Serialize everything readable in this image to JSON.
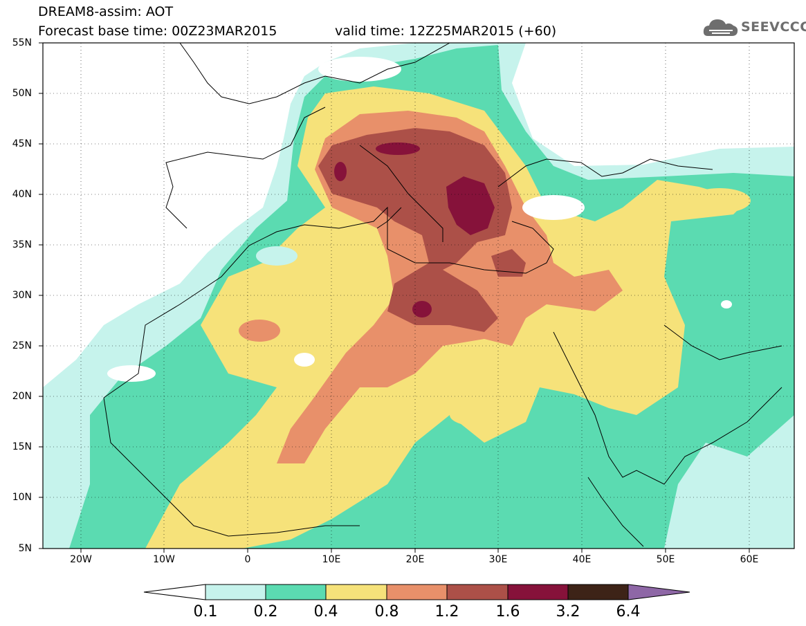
{
  "header": {
    "title_line1": "DREAM8-assim: AOT",
    "title_line2": "Forecast base time: 00Z23MAR2015",
    "valid_time": "valid time: 12Z25MAR2015 (+60)",
    "logo_text": "SEEVCCC",
    "logo_icon": "cloud-icon"
  },
  "map": {
    "lon_range": [
      -25,
      65
    ],
    "lat_range": [
      5,
      55
    ],
    "lat_labels": [
      "55N",
      "50N",
      "45N",
      "40N",
      "35N",
      "30N",
      "25N",
      "20N",
      "15N",
      "10N",
      "5N"
    ],
    "lon_labels": [
      "20W",
      "10W",
      "0",
      "10E",
      "20E",
      "30E",
      "40E",
      "50E",
      "60E"
    ]
  },
  "colorbar": {
    "colors": [
      "#ffffff",
      "#c6f3ec",
      "#5bdbb1",
      "#f6e27a",
      "#e8906a",
      "#ac5048",
      "#86123a",
      "#3d2317",
      "#8e67a6"
    ],
    "labels": [
      "0.1",
      "0.2",
      "0.4",
      "0.8",
      "1.2",
      "1.6",
      "3.2",
      "6.4"
    ]
  }
}
